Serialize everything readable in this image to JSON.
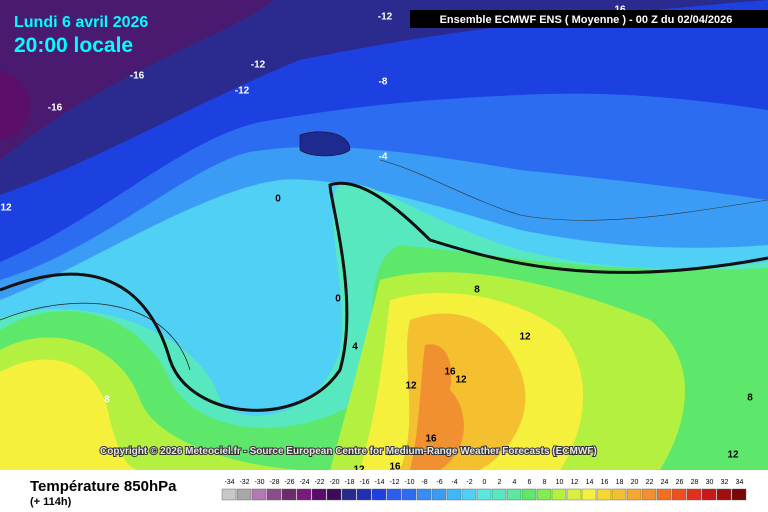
{
  "header": {
    "date": "Lundi 6 avril 2026",
    "time": "20:00 locale",
    "model": "Ensemble ECMWF ENS ( Moyenne ) - 00 Z du 02/04/2026"
  },
  "copyright": "Copyright © 2026 Meteociel.fr - Source European Centre for Medium-Range Weather Forecasts (ECMWF)",
  "contour_labels": [
    -12,
    -16,
    -12,
    -12,
    -16,
    -8,
    -4,
    0,
    12,
    0,
    4,
    8,
    12,
    16,
    12,
    12,
    8,
    16,
    16,
    12,
    16,
    8,
    12
  ],
  "footer": {
    "title": "Température 850hPa",
    "lead": "(+ 114h)"
  },
  "legend": {
    "values": [
      -34,
      -32,
      -30,
      -28,
      -26,
      -24,
      -22,
      -20,
      -18,
      -16,
      -14,
      -12,
      -10,
      -8,
      -6,
      -4,
      -2,
      0,
      2,
      4,
      6,
      8,
      10,
      12,
      14,
      16,
      18,
      20,
      22,
      24,
      26,
      28,
      30,
      32,
      34
    ],
    "colors": [
      "#c8c8c8",
      "#a8a8a8",
      "#b478b4",
      "#8c4c8c",
      "#6c2c6c",
      "#7a1a7a",
      "#5a0a6a",
      "#3c0c5c",
      "#2a2a8c",
      "#2030b0",
      "#1d40e0",
      "#2c5cf0",
      "#2c6cf0",
      "#3a8cf5",
      "#3a9cf5",
      "#40b8f5",
      "#50d0f5",
      "#58e8e0",
      "#58e8c0",
      "#5de8a0",
      "#5de86c",
      "#80ec50",
      "#b4f040",
      "#d8f040",
      "#f5f03c",
      "#f5d830",
      "#f5c030",
      "#f5a830",
      "#f09030",
      "#f07020",
      "#f05020",
      "#e03020",
      "#c81818",
      "#a01010",
      "#780808"
    ]
  }
}
